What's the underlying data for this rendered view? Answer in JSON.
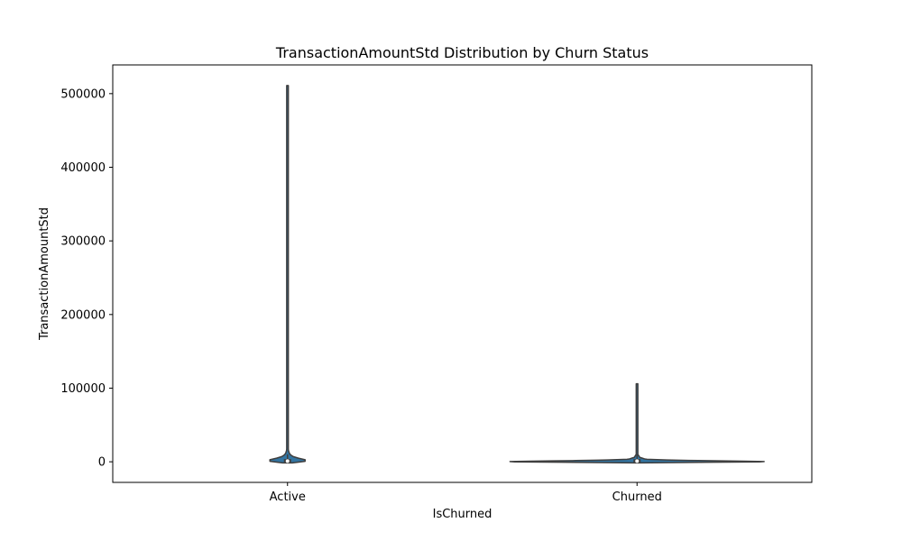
{
  "chart_data": {
    "type": "violin",
    "title": "TransactionAmountStd Distribution by Churn Status",
    "xlabel": "IsChurned",
    "ylabel": "TransactionAmountStd",
    "categories": [
      "Active",
      "Churned"
    ],
    "ylim": [
      -28000,
      539000
    ],
    "yticks": [
      0,
      100000,
      200000,
      300000,
      400000,
      500000
    ],
    "ytick_labels": [
      "0",
      "100000",
      "200000",
      "300000",
      "400000",
      "500000"
    ],
    "grid": false,
    "violin_color": "#3274a1",
    "violins": [
      {
        "category": "Active",
        "min": -1500,
        "max": 511000,
        "q1": 300,
        "median": 1000,
        "q3": 2400,
        "whisker_low": 0,
        "whisker_high": 10000,
        "relative_width": 0.055,
        "density_profile": [
          [
            -1500,
            0.25
          ],
          [
            0,
            0.85
          ],
          [
            1500,
            1.0
          ],
          [
            3000,
            0.9
          ],
          [
            5000,
            0.55
          ],
          [
            7000,
            0.3
          ],
          [
            10000,
            0.12
          ],
          [
            15000,
            0.05
          ],
          [
            25000,
            0.02
          ],
          [
            60000,
            0.01
          ],
          [
            200000,
            0.008
          ],
          [
            511000,
            0.006
          ]
        ]
      },
      {
        "category": "Churned",
        "min": -1500,
        "max": 106000,
        "q1": 300,
        "median": 1000,
        "q3": 2400,
        "whisker_low": 0,
        "whisker_high": 10000,
        "relative_width": 0.4,
        "density_profile": [
          [
            -1500,
            0.01
          ],
          [
            -500,
            0.6
          ],
          [
            0,
            1.0
          ],
          [
            800,
            0.75
          ],
          [
            2000,
            0.3
          ],
          [
            3500,
            0.06
          ],
          [
            6000,
            0.02
          ],
          [
            10000,
            0.006
          ],
          [
            20000,
            0.003
          ],
          [
            60000,
            0.002
          ],
          [
            106000,
            0.002
          ]
        ]
      }
    ]
  }
}
